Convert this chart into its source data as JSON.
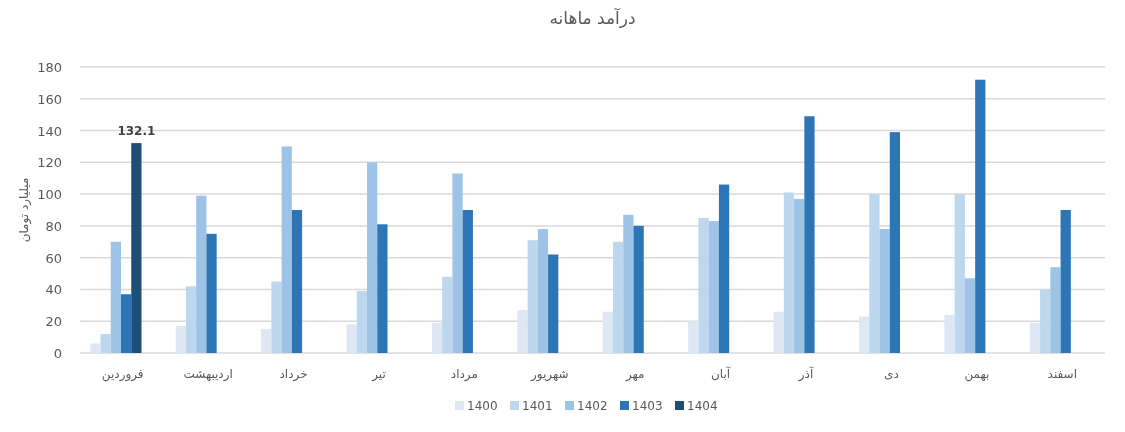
{
  "chart_data": {
    "type": "bar",
    "title": "درآمد ماهانه",
    "ylabel": "میلیارد تومان",
    "categories": [
      "فروردین",
      "اردیبهشت",
      "خرداد",
      "تیر",
      "مرداد",
      "شهریور",
      "مهر",
      "آبان",
      "آذر",
      "دی",
      "بهمن",
      "اسفند"
    ],
    "series": [
      {
        "name": "1400",
        "color": "#dee8f5",
        "values": [
          6,
          17,
          15,
          18,
          19,
          27,
          26,
          20,
          26,
          23,
          24,
          19
        ]
      },
      {
        "name": "1401",
        "color": "#bdd7ee",
        "values": [
          12,
          42,
          45,
          39,
          48,
          71,
          70,
          85,
          101,
          100,
          100,
          40
        ]
      },
      {
        "name": "1402",
        "color": "#9dc3e6",
        "values": [
          70,
          99,
          130,
          120,
          113,
          78,
          87,
          83,
          97,
          78,
          47,
          54
        ]
      },
      {
        "name": "1403",
        "color": "#2e75b6",
        "values": [
          37,
          75,
          90,
          81,
          90,
          62,
          80,
          106,
          149,
          139,
          172,
          90
        ]
      },
      {
        "name": "1404",
        "color": "#1f4e79",
        "values": [
          132.1,
          null,
          null,
          null,
          null,
          null,
          null,
          null,
          null,
          null,
          null,
          null
        ],
        "value_labels": [
          "132.1",
          null,
          null,
          null,
          null,
          null,
          null,
          null,
          null,
          null,
          null,
          null
        ]
      }
    ],
    "ylim": [
      0,
      180
    ],
    "yticks": [
      0,
      20,
      40,
      60,
      80,
      100,
      120,
      140,
      160,
      180
    ],
    "grid": "y",
    "legend": "bottom"
  }
}
